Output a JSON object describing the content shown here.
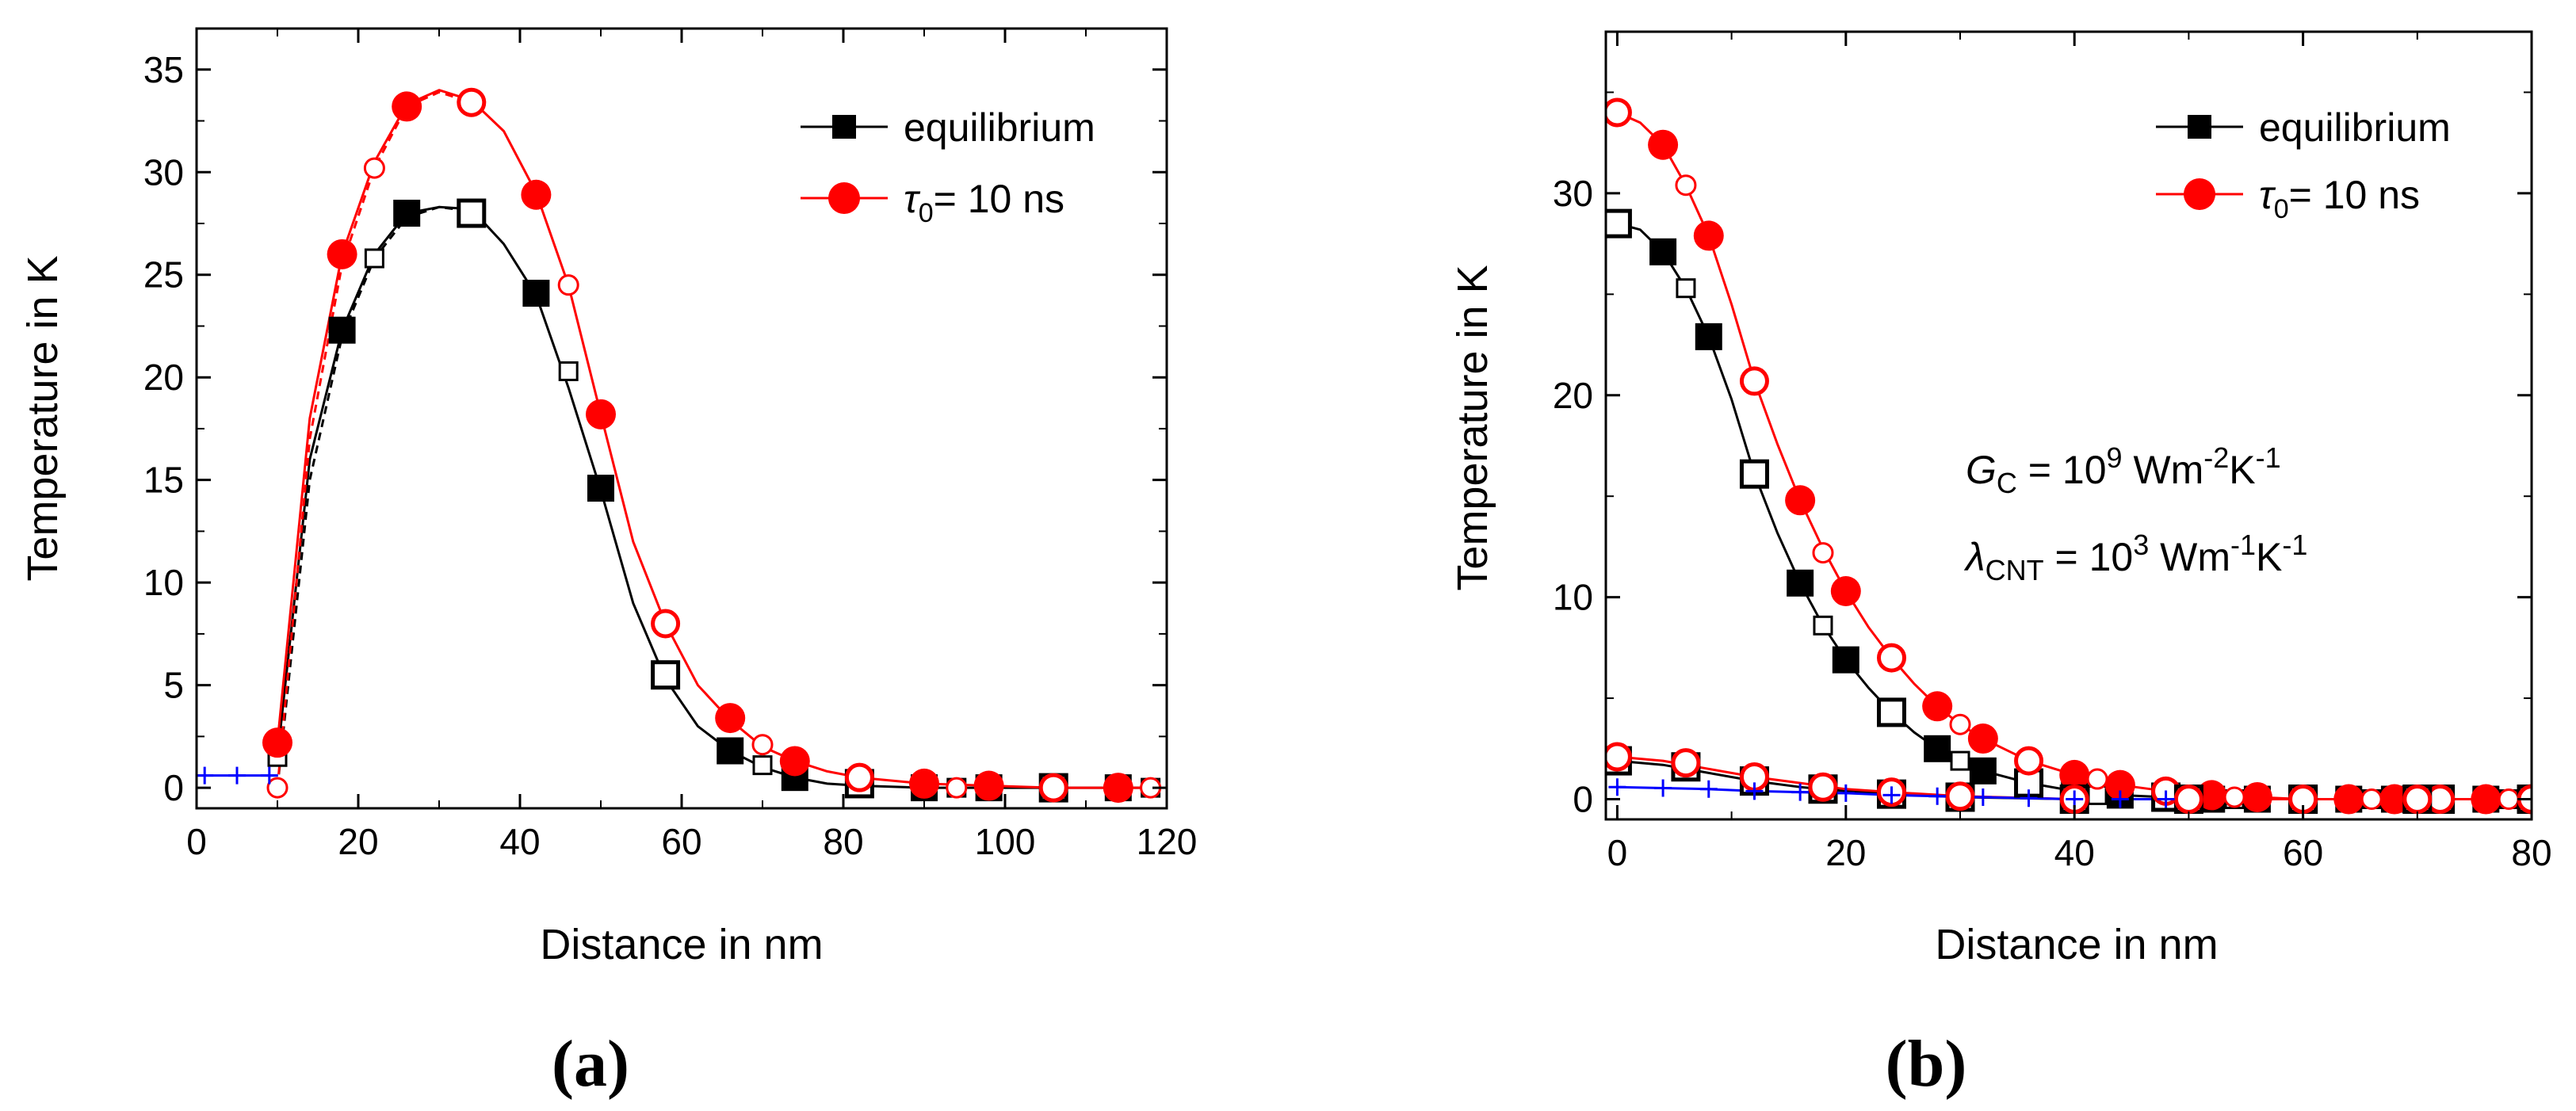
{
  "colors": {
    "equilibrium": "#000000",
    "tau": "#ff0000",
    "baseline": "#0000ff"
  },
  "chart_data": [
    {
      "type": "line",
      "panel_label": "(a)",
      "xlabel": "Distance in nm",
      "ylabel": "Temperature in K",
      "xlim": [
        0,
        120
      ],
      "ylim": [
        -1,
        37
      ],
      "xticks": [
        0,
        20,
        40,
        60,
        80,
        100,
        120
      ],
      "yticks": [
        0,
        5,
        10,
        15,
        20,
        25,
        30,
        35
      ],
      "legend": {
        "position": "top-right",
        "entries": [
          "equilibrium",
          "= 10 ns"
        ],
        "tau_symbol": "τ",
        "tau_sub": "0"
      },
      "series": [
        {
          "name": "equilibrium",
          "color": "#000000",
          "dash": false,
          "x": [
            10,
            14,
            18,
            22,
            26,
            30,
            34,
            38,
            42,
            46,
            50,
            54,
            58,
            62,
            66,
            70,
            74,
            78,
            82,
            90,
            98,
            106,
            114,
            118
          ],
          "y": [
            1.5,
            16,
            22.3,
            26,
            28,
            28.3,
            28.2,
            26.5,
            24,
            19.5,
            14.5,
            9,
            5.3,
            3,
            1.8,
            1,
            0.5,
            0.2,
            0.1,
            0,
            0,
            0,
            0,
            0
          ]
        },
        {
          "name": "equilibrium (open)",
          "color": "#000000",
          "dash": true,
          "x": [
            10,
            14,
            18,
            22,
            26,
            30,
            34
          ],
          "y": [
            0,
            15,
            22,
            25.8,
            27.8,
            28.3,
            28.1
          ]
        },
        {
          "name": "τ0 = 10 ns",
          "color": "#ff0000",
          "dash": false,
          "x": [
            10,
            14,
            18,
            22,
            26,
            30,
            34,
            38,
            42,
            46,
            50,
            54,
            58,
            62,
            66,
            70,
            74,
            78,
            82,
            90,
            98,
            106,
            114,
            118
          ],
          "y": [
            2.2,
            18,
            26,
            30.5,
            33.3,
            34,
            33.5,
            32,
            29,
            24.5,
            18.2,
            12,
            8,
            5,
            3.3,
            2,
            1.3,
            0.8,
            0.5,
            0.2,
            0.1,
            0,
            0,
            0
          ]
        },
        {
          "name": "τ0 = 10 ns (dashed)",
          "color": "#ff0000",
          "dash": true,
          "x": [
            10,
            14,
            18,
            22,
            26,
            30,
            34
          ],
          "y": [
            0,
            17,
            25.5,
            30.2,
            33.2,
            33.9,
            33.4
          ]
        },
        {
          "name": "baseline",
          "color": "#0000ff",
          "dash": false,
          "x": [
            0,
            2,
            5,
            8,
            10
          ],
          "y": [
            0.6,
            0.6,
            0.6,
            0.6,
            0.6
          ]
        }
      ],
      "markers": [
        {
          "series": "equilibrium",
          "style": "filled-square",
          "color": "#000000",
          "points": [
            [
              18,
              22.3
            ],
            [
              26,
              28
            ],
            [
              42,
              24.1
            ],
            [
              50,
              14.6
            ],
            [
              66,
              1.8
            ],
            [
              74,
              0.5
            ],
            [
              90,
              0
            ],
            [
              98,
              0
            ],
            [
              114,
              0
            ]
          ]
        },
        {
          "series": "equilibrium",
          "style": "open-square",
          "color": "#000000",
          "points": [
            [
              34,
              28
            ],
            [
              58,
              5.5
            ],
            [
              82,
              0.2
            ],
            [
              106,
              0
            ]
          ]
        },
        {
          "series": "equilibrium",
          "style": "small-open-square",
          "color": "#000000",
          "points": [
            [
              10,
              1.5
            ],
            [
              22,
              25.8
            ],
            [
              46,
              20.3
            ],
            [
              70,
              1.1
            ],
            [
              94,
              0
            ],
            [
              118,
              0
            ]
          ]
        },
        {
          "series": "τ0 = 10 ns",
          "style": "filled-circle",
          "color": "#ff0000",
          "points": [
            [
              10,
              2.2
            ],
            [
              18,
              26
            ],
            [
              26,
              33.2
            ],
            [
              42,
              28.9
            ],
            [
              50,
              18.2
            ],
            [
              66,
              3.4
            ],
            [
              74,
              1.3
            ],
            [
              90,
              0.2
            ],
            [
              98,
              0.1
            ],
            [
              114,
              0
            ]
          ]
        },
        {
          "series": "τ0 = 10 ns",
          "style": "open-circle",
          "color": "#ff0000",
          "points": [
            [
              34,
              33.4
            ],
            [
              58,
              8
            ],
            [
              82,
              0.5
            ],
            [
              106,
              0
            ]
          ]
        },
        {
          "series": "τ0 = 10 ns",
          "style": "small-open-circle",
          "color": "#ff0000",
          "points": [
            [
              10,
              0
            ],
            [
              22,
              30.2
            ],
            [
              46,
              24.5
            ],
            [
              70,
              2.1
            ],
            [
              94,
              0
            ],
            [
              118,
              0
            ]
          ]
        }
      ]
    },
    {
      "type": "line",
      "panel_label": "(b)",
      "xlabel": "Distance in nm",
      "ylabel": "Temperature in K",
      "xlim": [
        -1,
        80
      ],
      "ylim": [
        -1,
        38
      ],
      "xticks": [
        0,
        20,
        40,
        60,
        80
      ],
      "yticks": [
        0,
        10,
        20,
        30
      ],
      "legend": {
        "position": "top-right",
        "entries": [
          "equilibrium",
          "= 10 ns"
        ],
        "tau_symbol": "τ",
        "tau_sub": "0"
      },
      "annotations": {
        "gc": {
          "symbol": "G",
          "sub": "C",
          "text1": " = 10",
          "sup1": "9",
          "text2": " Wm",
          "sup2": "-2",
          "text3": "K",
          "sup3": "-1"
        },
        "lambda": {
          "symbol": "λ",
          "sub": "CNT",
          "text1": " = 10",
          "sup1": "3",
          "text2": " Wm",
          "sup2": "-1",
          "text3": "K",
          "sup3": "-1"
        }
      },
      "series": [
        {
          "name": "equilibrium",
          "color": "#000000",
          "dash": false,
          "x": [
            0,
            2,
            4,
            6,
            8,
            10,
            12,
            14,
            16,
            18,
            20,
            22,
            24,
            26,
            28,
            30,
            32,
            36,
            40,
            44,
            48,
            52,
            56,
            60,
            64,
            68,
            72,
            76,
            80
          ],
          "y": [
            28.5,
            28.2,
            27.1,
            25.3,
            22.9,
            19.8,
            16.1,
            13.2,
            10.7,
            8.6,
            6.9,
            5.5,
            4.3,
            3.3,
            2.5,
            1.9,
            1.4,
            0.8,
            0.4,
            0.2,
            0.1,
            0,
            0,
            0,
            0,
            0,
            0,
            0,
            0
          ]
        },
        {
          "name": "τ0 = 10 ns",
          "color": "#ff0000",
          "dash": false,
          "x": [
            0,
            2,
            4,
            6,
            8,
            10,
            12,
            14,
            16,
            18,
            20,
            22,
            24,
            26,
            28,
            30,
            32,
            36,
            40,
            44,
            48,
            52,
            56,
            60,
            64,
            68,
            72,
            76,
            80
          ],
          "y": [
            34,
            33.5,
            32.4,
            30.4,
            27.9,
            24.5,
            20.7,
            17.6,
            14.8,
            12.4,
            10.3,
            8.5,
            7,
            5.7,
            4.6,
            3.7,
            3,
            1.9,
            1.2,
            0.7,
            0.4,
            0.2,
            0.1,
            0,
            0,
            0,
            0,
            0,
            0
          ]
        },
        {
          "name": "equilibrium (secondary)",
          "color": "#000000",
          "dash": false,
          "x": [
            0,
            4,
            8,
            12,
            16,
            20,
            24,
            30,
            40,
            50,
            60,
            70,
            80
          ],
          "y": [
            1.9,
            1.7,
            1.3,
            0.9,
            0.6,
            0.4,
            0.25,
            0.1,
            0,
            0,
            0,
            0,
            0
          ]
        },
        {
          "name": "τ0 = 10 ns (secondary)",
          "color": "#ff0000",
          "dash": false,
          "x": [
            0,
            4,
            8,
            12,
            16,
            20,
            24,
            30,
            40,
            50,
            60,
            70,
            80
          ],
          "y": [
            2.1,
            1.9,
            1.5,
            1.1,
            0.8,
            0.5,
            0.35,
            0.15,
            0,
            0,
            0,
            0,
            0
          ]
        },
        {
          "name": "baseline",
          "color": "#0000ff",
          "dash": false,
          "x": [
            0,
            4,
            8,
            12,
            16,
            20,
            24,
            28,
            32,
            36,
            40,
            44,
            48
          ],
          "y": [
            0.6,
            0.55,
            0.5,
            0.4,
            0.35,
            0.3,
            0.2,
            0.15,
            0.1,
            0.05,
            0,
            0,
            0
          ]
        }
      ],
      "markers": [
        {
          "series": "equilibrium",
          "style": "filled-square",
          "color": "#000000",
          "points": [
            [
              4,
              27.1
            ],
            [
              8,
              22.9
            ],
            [
              16,
              10.7
            ],
            [
              20,
              6.9
            ],
            [
              28,
              2.5
            ],
            [
              32,
              1.4
            ],
            [
              40,
              0.4
            ],
            [
              44,
              0.2
            ],
            [
              52,
              0
            ],
            [
              56,
              0
            ],
            [
              64,
              0
            ],
            [
              68,
              0
            ],
            [
              76,
              0
            ],
            [
              80,
              0
            ]
          ]
        },
        {
          "series": "equilibrium",
          "style": "open-square",
          "color": "#000000",
          "points": [
            [
              0,
              28.5
            ],
            [
              12,
              16.1
            ],
            [
              24,
              4.3
            ],
            [
              36,
              0.8
            ],
            [
              48,
              0.1
            ],
            [
              60,
              0
            ],
            [
              72,
              0
            ]
          ]
        },
        {
          "series": "equilibrium",
          "style": "small-open-square",
          "color": "#000000",
          "points": [
            [
              6,
              25.3
            ],
            [
              18,
              8.6
            ],
            [
              30,
              1.9
            ],
            [
              42,
              0.2
            ],
            [
              54,
              0
            ],
            [
              66,
              0
            ],
            [
              78,
              0
            ]
          ]
        },
        {
          "series": "τ0 = 10 ns",
          "style": "filled-circle",
          "color": "#ff0000",
          "points": [
            [
              4,
              32.4
            ],
            [
              8,
              27.9
            ],
            [
              16,
              14.8
            ],
            [
              20,
              10.3
            ],
            [
              28,
              4.6
            ],
            [
              32,
              3
            ],
            [
              40,
              1.2
            ],
            [
              44,
              0.7
            ],
            [
              52,
              0.2
            ],
            [
              56,
              0.1
            ],
            [
              64,
              0
            ],
            [
              68,
              0
            ],
            [
              76,
              0
            ],
            [
              80,
              0
            ]
          ]
        },
        {
          "series": "τ0 = 10 ns",
          "style": "open-circle",
          "color": "#ff0000",
          "points": [
            [
              0,
              34
            ],
            [
              12,
              20.7
            ],
            [
              24,
              7
            ],
            [
              36,
              1.9
            ],
            [
              48,
              0.4
            ],
            [
              60,
              0
            ],
            [
              72,
              0
            ]
          ]
        },
        {
          "series": "τ0 = 10 ns",
          "style": "small-open-circle",
          "color": "#ff0000",
          "points": [
            [
              6,
              30.4
            ],
            [
              18,
              12.2
            ],
            [
              30,
              3.7
            ],
            [
              42,
              1
            ],
            [
              54,
              0.1
            ],
            [
              66,
              0
            ],
            [
              78,
              0
            ]
          ]
        },
        {
          "series": "equilibrium (secondary)",
          "style": "open-square",
          "color": "#000000",
          "points": [
            [
              0,
              1.9
            ],
            [
              6,
              1.6
            ],
            [
              12,
              0.9
            ],
            [
              18,
              0.5
            ],
            [
              24,
              0.25
            ],
            [
              30,
              0.1
            ],
            [
              40,
              0
            ],
            [
              50,
              0
            ],
            [
              60,
              0
            ],
            [
              70,
              0
            ],
            [
              80,
              0
            ]
          ]
        },
        {
          "series": "τ0 = 10 ns (secondary)",
          "style": "open-circle",
          "color": "#ff0000",
          "points": [
            [
              0,
              2.1
            ],
            [
              6,
              1.8
            ],
            [
              12,
              1.1
            ],
            [
              18,
              0.6
            ],
            [
              24,
              0.35
            ],
            [
              30,
              0.15
            ],
            [
              40,
              0
            ],
            [
              50,
              0
            ],
            [
              60,
              0
            ],
            [
              70,
              0
            ],
            [
              80,
              0
            ]
          ]
        },
        {
          "series": "baseline",
          "style": "plus",
          "color": "#0000ff",
          "points": [
            [
              0,
              0.6
            ],
            [
              4,
              0.55
            ],
            [
              8,
              0.5
            ],
            [
              12,
              0.4
            ],
            [
              16,
              0.35
            ],
            [
              20,
              0.3
            ],
            [
              24,
              0.2
            ],
            [
              28,
              0.15
            ],
            [
              32,
              0.1
            ],
            [
              36,
              0.05
            ],
            [
              40,
              0
            ],
            [
              44,
              0
            ],
            [
              48,
              0
            ]
          ]
        }
      ]
    }
  ]
}
